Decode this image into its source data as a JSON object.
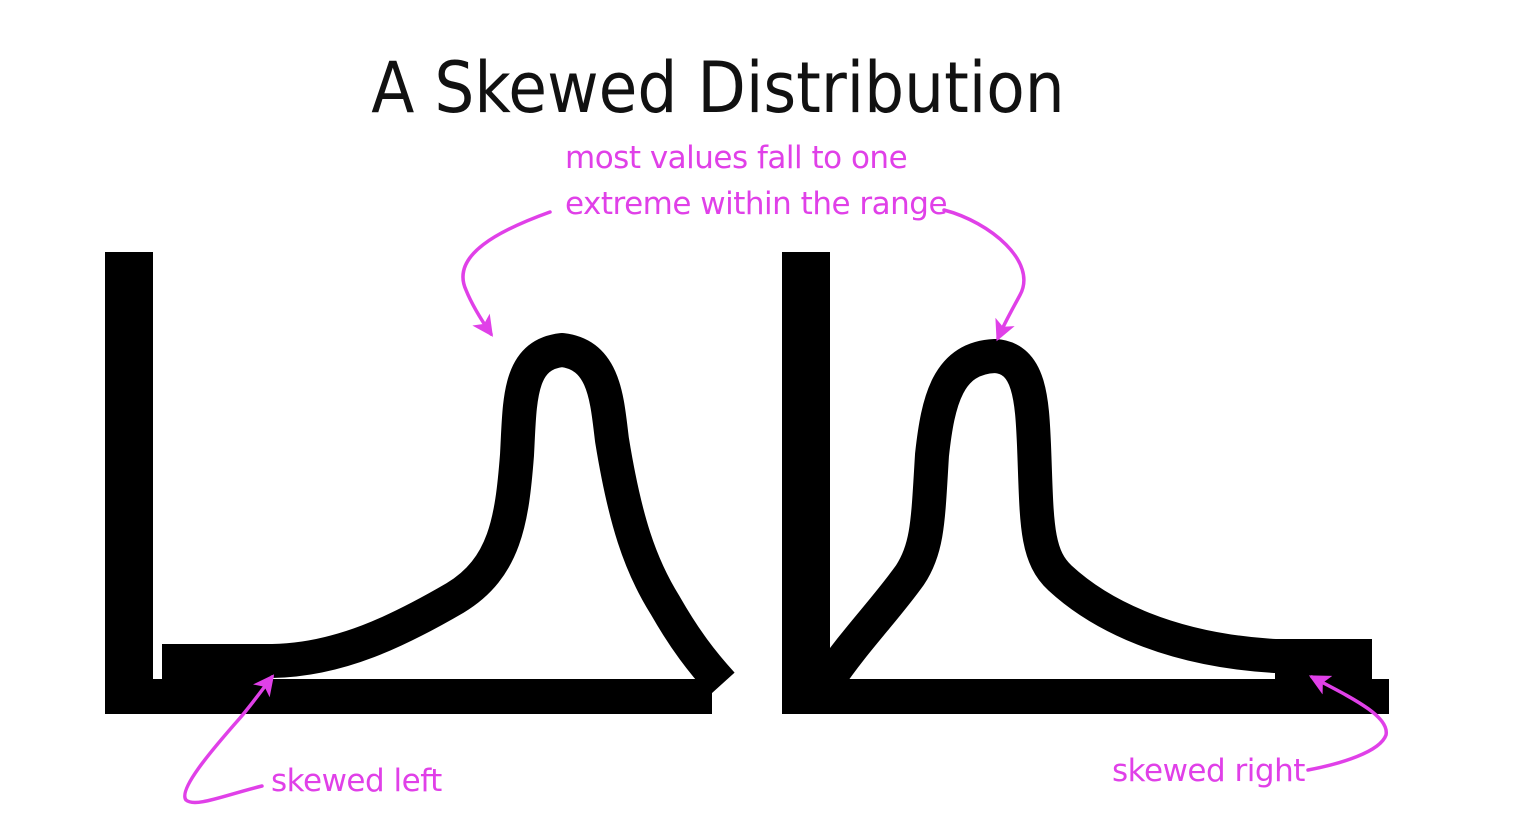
{
  "title": "A Skewed Distribution",
  "annotations": {
    "peak_line1": "most values fall to one",
    "peak_line2": "extreme within the range",
    "left_tail": "skewed left",
    "right_tail": "skewed right"
  },
  "colors": {
    "ink": "#000000",
    "annotation": "#e040e8"
  }
}
